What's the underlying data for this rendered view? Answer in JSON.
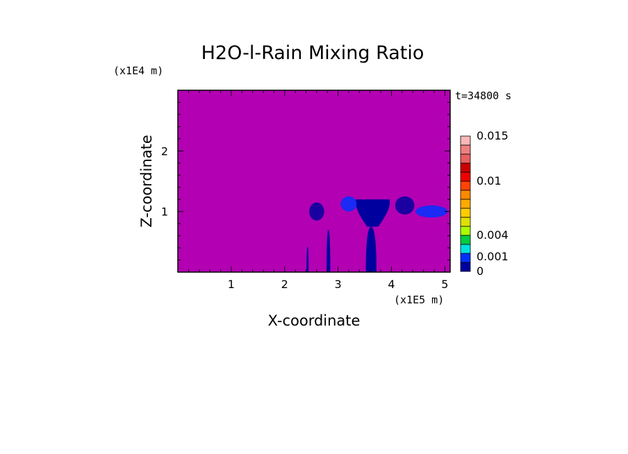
{
  "chart_data": {
    "type": "heatmap",
    "title": "H2O-l-Rain Mixing Ratio",
    "xlabel": "X-coordinate",
    "ylabel": "Z-coordinate",
    "x_multiplier": "(x1E5 m)",
    "y_multiplier": "(x1E4 m)",
    "time_label": "t=34800 s",
    "xlim": [
      0,
      5.1
    ],
    "ylim": [
      0,
      3.0
    ],
    "x_ticks": [
      1,
      2,
      3,
      4,
      5
    ],
    "y_ticks": [
      1,
      2
    ],
    "x_tick_labels": [
      "1",
      "2",
      "3",
      "4",
      "5"
    ],
    "y_tick_labels": [
      "1",
      "2"
    ],
    "background_color": "#b300b3",
    "colorbar": {
      "levels": [
        0,
        0.001,
        0.002,
        0.003,
        0.004,
        0.005,
        0.006,
        0.007,
        0.008,
        0.009,
        0.01,
        0.011,
        0.012,
        0.013,
        0.014,
        0.015
      ],
      "colors": [
        "#00009e",
        "#0031ff",
        "#00e0e0",
        "#00cc44",
        "#aaff00",
        "#e0e000",
        "#ffcc00",
        "#ffaa00",
        "#ff8800",
        "#ff4400",
        "#ee0000",
        "#cc0000",
        "#e86060",
        "#f08080",
        "#f8b8b8"
      ],
      "labels": [
        "0",
        "0.001",
        "0.004",
        "0.01",
        "0.015"
      ],
      "label_values": [
        0,
        0.001,
        0.004,
        0.01,
        0.015
      ]
    },
    "rain_regions": [
      {
        "kind": "shaft",
        "x_center": 2.43,
        "half_width": 0.02,
        "z_bottom": 0,
        "z_top": 0.42
      },
      {
        "kind": "shaft",
        "x_center": 2.82,
        "half_width": 0.035,
        "z_bottom": 0,
        "z_top": 0.7
      },
      {
        "kind": "shaft",
        "x_center": 3.62,
        "half_width": 0.1,
        "z_bottom": 0,
        "z_top": 0.75
      },
      {
        "kind": "anvil",
        "x_center": 3.65,
        "half_width": 0.35,
        "z_bottom": 0.75,
        "z_top": 1.2
      },
      {
        "kind": "patch",
        "x_center": 2.6,
        "half_width": 0.14,
        "z_bottom": 0.85,
        "z_top": 1.15
      },
      {
        "kind": "patch",
        "x_center": 3.2,
        "half_width": 0.15,
        "z_bottom": 1.0,
        "z_top": 1.25
      },
      {
        "kind": "patch",
        "x_center": 4.25,
        "half_width": 0.18,
        "z_bottom": 0.95,
        "z_top": 1.25
      },
      {
        "kind": "patch",
        "x_center": 4.75,
        "half_width": 0.3,
        "z_bottom": 0.9,
        "z_top": 1.1
      }
    ]
  }
}
